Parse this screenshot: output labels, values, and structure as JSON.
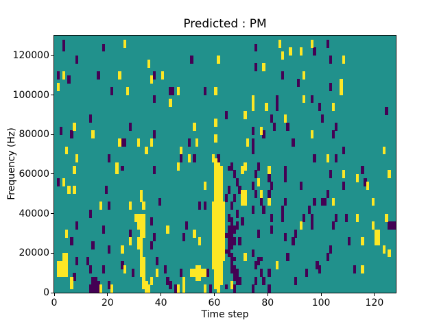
{
  "figure": {
    "title": "Predicted : PM",
    "xlabel": "Time step",
    "ylabel": "Frequency (Hz)"
  },
  "chart_data": {
    "type": "heatmap",
    "title": "Predicted : PM",
    "xlabel": "Time step",
    "ylabel": "Frequency (Hz)",
    "x_range": [
      0,
      128
    ],
    "y_range": [
      0,
      130000
    ],
    "grid_cols": 128,
    "grid_rows": 65,
    "hz_per_row": 2000,
    "x_ticks": [
      0,
      20,
      40,
      60,
      80,
      100,
      120
    ],
    "y_ticks": [
      0,
      20000,
      40000,
      60000,
      80000,
      100000,
      120000
    ],
    "grid": "off",
    "legend": "none",
    "colors": {
      "mid": "#21918c",
      "high": "#fde725",
      "low": "#440154"
    },
    "background_class": "mid",
    "cells_high_runs": [
      [
        59,
        6,
        22
      ],
      [
        60,
        1,
        33
      ],
      [
        61,
        0,
        32
      ],
      [
        62,
        2,
        31
      ],
      [
        63,
        8,
        22
      ],
      [
        30,
        18,
        19
      ],
      [
        31,
        16,
        19
      ],
      [
        31,
        11,
        13
      ],
      [
        32,
        4,
        19
      ],
      [
        33,
        14,
        19
      ],
      [
        33,
        1,
        8
      ],
      [
        34,
        0,
        2
      ],
      [
        35,
        0,
        1
      ],
      [
        1,
        4,
        7
      ],
      [
        2,
        4,
        7
      ],
      [
        3,
        4,
        9
      ],
      [
        4,
        4,
        9
      ],
      [
        6,
        1,
        3
      ],
      [
        51,
        4,
        5
      ],
      [
        52,
        4,
        5
      ],
      [
        53,
        3,
        6
      ],
      [
        54,
        3,
        6
      ],
      [
        55,
        4,
        5
      ],
      [
        56,
        4,
        5
      ],
      [
        26,
        62,
        63
      ],
      [
        35,
        57,
        58
      ],
      [
        3,
        54,
        55
      ],
      [
        24,
        54,
        55
      ],
      [
        40,
        54,
        55
      ],
      [
        36,
        53,
        54
      ],
      [
        1,
        51,
        52
      ],
      [
        27,
        50,
        51
      ],
      [
        43,
        47,
        48
      ],
      [
        7,
        41,
        42
      ],
      [
        14,
        39,
        40
      ],
      [
        4,
        35,
        36
      ],
      [
        24,
        37,
        38
      ],
      [
        31,
        37,
        38
      ],
      [
        36,
        37,
        38
      ],
      [
        34,
        35,
        36
      ],
      [
        23,
        30,
        32
      ],
      [
        7,
        30,
        31
      ],
      [
        8,
        33,
        34
      ],
      [
        17,
        0,
        1
      ],
      [
        17,
        21,
        22
      ],
      [
        28,
        21,
        22
      ],
      [
        33,
        21,
        22
      ],
      [
        5,
        25,
        26
      ],
      [
        7,
        25,
        26
      ],
      [
        3,
        27,
        28
      ],
      [
        25,
        10,
        11
      ],
      [
        4,
        14,
        15
      ],
      [
        26,
        5,
        6
      ],
      [
        38,
        4,
        5
      ],
      [
        32,
        23,
        25
      ],
      [
        42,
        15,
        16
      ],
      [
        28,
        12,
        13
      ],
      [
        36,
        2,
        3
      ],
      [
        21,
        0,
        1
      ],
      [
        48,
        0,
        3
      ],
      [
        84,
        62,
        63
      ],
      [
        85,
        59,
        60
      ],
      [
        61,
        58,
        59
      ],
      [
        78,
        56,
        57
      ],
      [
        46,
        50,
        51
      ],
      [
        60,
        50,
        51
      ],
      [
        74,
        48,
        49
      ],
      [
        74,
        46,
        47
      ],
      [
        79,
        46,
        47
      ],
      [
        71,
        44,
        45
      ],
      [
        86,
        43,
        44
      ],
      [
        60,
        42,
        43
      ],
      [
        77,
        40,
        41
      ],
      [
        52,
        41,
        42
      ],
      [
        60,
        38,
        39
      ],
      [
        72,
        37,
        38
      ],
      [
        53,
        37,
        38
      ],
      [
        47,
        35,
        36
      ],
      [
        50,
        33,
        34
      ],
      [
        59,
        33,
        34
      ],
      [
        71,
        31,
        32
      ],
      [
        46,
        31,
        32
      ],
      [
        46,
        0,
        1
      ],
      [
        70,
        30,
        31
      ],
      [
        80,
        30,
        31
      ],
      [
        76,
        27,
        28
      ],
      [
        56,
        26,
        27
      ],
      [
        70,
        22,
        25
      ],
      [
        71,
        22,
        25
      ],
      [
        77,
        24,
        25
      ],
      [
        52,
        14,
        15
      ],
      [
        54,
        12,
        13
      ],
      [
        71,
        8,
        9
      ],
      [
        83,
        6,
        7
      ],
      [
        80,
        22,
        23
      ],
      [
        56,
        0,
        1
      ],
      [
        66,
        1,
        2
      ],
      [
        96,
        62,
        63
      ],
      [
        88,
        60,
        61
      ],
      [
        92,
        60,
        61
      ],
      [
        108,
        58,
        59
      ],
      [
        93,
        54,
        55
      ],
      [
        107,
        50,
        53
      ],
      [
        93,
        48,
        49
      ],
      [
        104,
        46,
        47
      ],
      [
        123,
        35,
        36
      ],
      [
        102,
        33,
        34
      ],
      [
        96,
        39,
        40
      ],
      [
        108,
        29,
        30
      ],
      [
        125,
        29,
        30
      ],
      [
        113,
        28,
        29
      ],
      [
        117,
        26,
        27
      ],
      [
        104,
        22,
        23
      ],
      [
        119,
        22,
        23
      ],
      [
        113,
        18,
        19
      ],
      [
        124,
        18,
        19
      ],
      [
        92,
        16,
        17
      ],
      [
        119,
        16,
        17
      ],
      [
        120,
        12,
        15
      ],
      [
        121,
        12,
        15
      ],
      [
        115,
        12,
        13
      ],
      [
        123,
        10,
        11
      ],
      [
        125,
        9,
        10
      ],
      [
        115,
        5,
        6
      ]
    ],
    "cells_low_runs": [
      [
        65,
        31,
        31
      ],
      [
        66,
        31,
        32
      ],
      [
        67,
        29,
        30
      ],
      [
        68,
        27,
        28
      ],
      [
        65,
        25,
        26
      ],
      [
        69,
        25,
        26
      ],
      [
        64,
        23,
        24
      ],
      [
        67,
        23,
        24
      ],
      [
        66,
        21,
        22
      ],
      [
        65,
        18,
        19
      ],
      [
        68,
        19,
        20
      ],
      [
        66,
        17,
        18
      ],
      [
        70,
        17,
        18
      ],
      [
        68,
        16,
        17
      ],
      [
        65,
        15,
        16
      ],
      [
        66,
        15,
        16
      ],
      [
        67,
        15,
        16
      ],
      [
        64,
        14,
        14
      ],
      [
        65,
        13,
        14
      ],
      [
        66,
        13,
        14
      ],
      [
        67,
        12,
        13
      ],
      [
        69,
        12,
        13
      ],
      [
        65,
        11,
        12
      ],
      [
        66,
        11,
        12
      ],
      [
        64,
        10,
        10
      ],
      [
        65,
        9,
        10
      ],
      [
        66,
        8,
        9
      ],
      [
        67,
        8,
        8
      ],
      [
        66,
        5,
        7
      ],
      [
        67,
        5,
        6
      ],
      [
        67,
        3,
        4
      ],
      [
        68,
        2,
        5
      ],
      [
        69,
        2,
        3
      ],
      [
        64,
        1,
        1
      ],
      [
        67,
        0,
        1
      ],
      [
        58,
        0,
        1
      ],
      [
        3,
        61,
        63
      ],
      [
        18,
        61,
        62
      ],
      [
        8,
        58,
        59
      ],
      [
        1,
        54,
        55
      ],
      [
        5,
        53,
        54
      ],
      [
        16,
        54,
        55
      ],
      [
        21,
        50,
        51
      ],
      [
        37,
        54,
        55
      ],
      [
        37,
        48,
        49
      ],
      [
        13,
        43,
        44
      ],
      [
        28,
        41,
        42
      ],
      [
        2,
        40,
        41
      ],
      [
        6,
        39,
        40
      ],
      [
        25,
        37,
        38
      ],
      [
        26,
        37,
        38
      ],
      [
        20,
        33,
        34
      ],
      [
        37,
        39,
        40
      ],
      [
        43,
        50,
        51
      ],
      [
        25,
        31,
        31
      ],
      [
        37,
        30,
        31
      ],
      [
        1,
        27,
        28
      ],
      [
        19,
        25,
        26
      ],
      [
        39,
        22,
        23
      ],
      [
        20,
        21,
        22
      ],
      [
        13,
        19,
        20
      ],
      [
        36,
        17,
        18
      ],
      [
        37,
        13,
        14
      ],
      [
        36,
        11,
        12
      ],
      [
        8,
        16,
        17
      ],
      [
        28,
        14,
        15
      ],
      [
        6,
        12,
        13
      ],
      [
        14,
        11,
        12
      ],
      [
        20,
        10,
        11
      ],
      [
        8,
        7,
        8
      ],
      [
        12,
        7,
        8
      ],
      [
        7,
        3,
        4
      ],
      [
        13,
        5,
        6
      ],
      [
        14,
        0,
        3
      ],
      [
        15,
        0,
        3
      ],
      [
        16,
        0,
        2
      ],
      [
        18,
        5,
        6
      ],
      [
        25,
        6,
        7
      ],
      [
        20,
        1,
        2
      ],
      [
        42,
        2,
        3
      ],
      [
        43,
        1,
        2
      ],
      [
        13,
        0,
        1
      ],
      [
        44,
        50,
        51
      ],
      [
        38,
        7,
        8
      ],
      [
        41,
        5,
        6
      ],
      [
        29,
        4,
        5
      ],
      [
        18,
        15,
        16
      ],
      [
        75,
        61,
        62
      ],
      [
        51,
        58,
        59
      ],
      [
        75,
        56,
        57
      ],
      [
        85,
        54,
        55
      ],
      [
        56,
        50,
        51
      ],
      [
        83,
        48,
        49
      ],
      [
        83,
        46,
        47
      ],
      [
        64,
        44,
        45
      ],
      [
        81,
        43,
        44
      ],
      [
        74,
        40,
        41
      ],
      [
        82,
        41,
        42
      ],
      [
        78,
        39,
        40
      ],
      [
        74,
        37,
        38
      ],
      [
        50,
        37,
        38
      ],
      [
        74,
        35,
        36
      ],
      [
        47,
        33,
        34
      ],
      [
        52,
        33,
        34
      ],
      [
        61,
        33,
        34
      ],
      [
        76,
        31,
        32
      ],
      [
        86,
        30,
        31
      ],
      [
        75,
        29,
        30
      ],
      [
        80,
        28,
        29
      ],
      [
        86,
        28,
        29
      ],
      [
        81,
        26,
        27
      ],
      [
        74,
        26,
        27
      ],
      [
        75,
        24,
        25
      ],
      [
        80,
        24,
        25
      ],
      [
        77,
        22,
        23
      ],
      [
        86,
        22,
        23
      ],
      [
        54,
        21,
        22
      ],
      [
        56,
        21,
        22
      ],
      [
        74,
        20,
        21
      ],
      [
        78,
        20,
        21
      ],
      [
        85,
        20,
        21
      ],
      [
        81,
        18,
        19
      ],
      [
        85,
        18,
        19
      ],
      [
        81,
        15,
        16
      ],
      [
        49,
        16,
        17
      ],
      [
        76,
        14,
        15
      ],
      [
        86,
        13,
        14
      ],
      [
        48,
        13,
        14
      ],
      [
        76,
        7,
        8
      ],
      [
        77,
        8,
        8
      ],
      [
        75,
        6,
        7
      ],
      [
        77,
        4,
        5
      ],
      [
        80,
        4,
        5
      ],
      [
        75,
        2,
        3
      ],
      [
        78,
        2,
        3
      ],
      [
        47,
        4,
        5
      ],
      [
        57,
        4,
        5
      ],
      [
        45,
        0,
        1
      ],
      [
        74,
        0,
        1
      ],
      [
        80,
        0,
        1
      ],
      [
        74,
        9,
        10
      ],
      [
        102,
        62,
        63
      ],
      [
        97,
        60,
        61
      ],
      [
        103,
        58,
        59
      ],
      [
        91,
        52,
        53
      ],
      [
        103,
        51,
        52
      ],
      [
        96,
        48,
        49
      ],
      [
        99,
        46,
        47
      ],
      [
        100,
        43,
        44
      ],
      [
        124,
        45,
        46
      ],
      [
        87,
        41,
        42
      ],
      [
        105,
        41,
        42
      ],
      [
        104,
        39,
        40
      ],
      [
        89,
        37,
        38
      ],
      [
        108,
        35,
        36
      ],
      [
        97,
        33,
        34
      ],
      [
        105,
        33,
        34
      ],
      [
        103,
        29,
        30
      ],
      [
        115,
        30,
        31
      ],
      [
        116,
        27,
        28
      ],
      [
        92,
        26,
        27
      ],
      [
        108,
        26,
        27
      ],
      [
        102,
        24,
        25
      ],
      [
        100,
        22,
        23
      ],
      [
        101,
        22,
        23
      ],
      [
        97,
        22,
        23
      ],
      [
        95,
        20,
        21
      ],
      [
        93,
        18,
        19
      ],
      [
        96,
        18,
        19
      ],
      [
        105,
        18,
        19
      ],
      [
        109,
        18,
        19
      ],
      [
        96,
        16,
        17
      ],
      [
        104,
        16,
        17
      ],
      [
        125,
        16,
        17
      ],
      [
        126,
        16,
        17
      ],
      [
        127,
        16,
        17
      ],
      [
        90,
        14,
        15
      ],
      [
        89,
        12,
        13
      ],
      [
        110,
        12,
        13
      ],
      [
        103,
        10,
        11
      ],
      [
        87,
        8,
        9
      ],
      [
        102,
        8,
        9
      ],
      [
        98,
        6,
        7
      ],
      [
        99,
        5,
        6
      ],
      [
        94,
        4,
        5
      ],
      [
        112,
        5,
        6
      ],
      [
        90,
        2,
        3
      ]
    ]
  }
}
